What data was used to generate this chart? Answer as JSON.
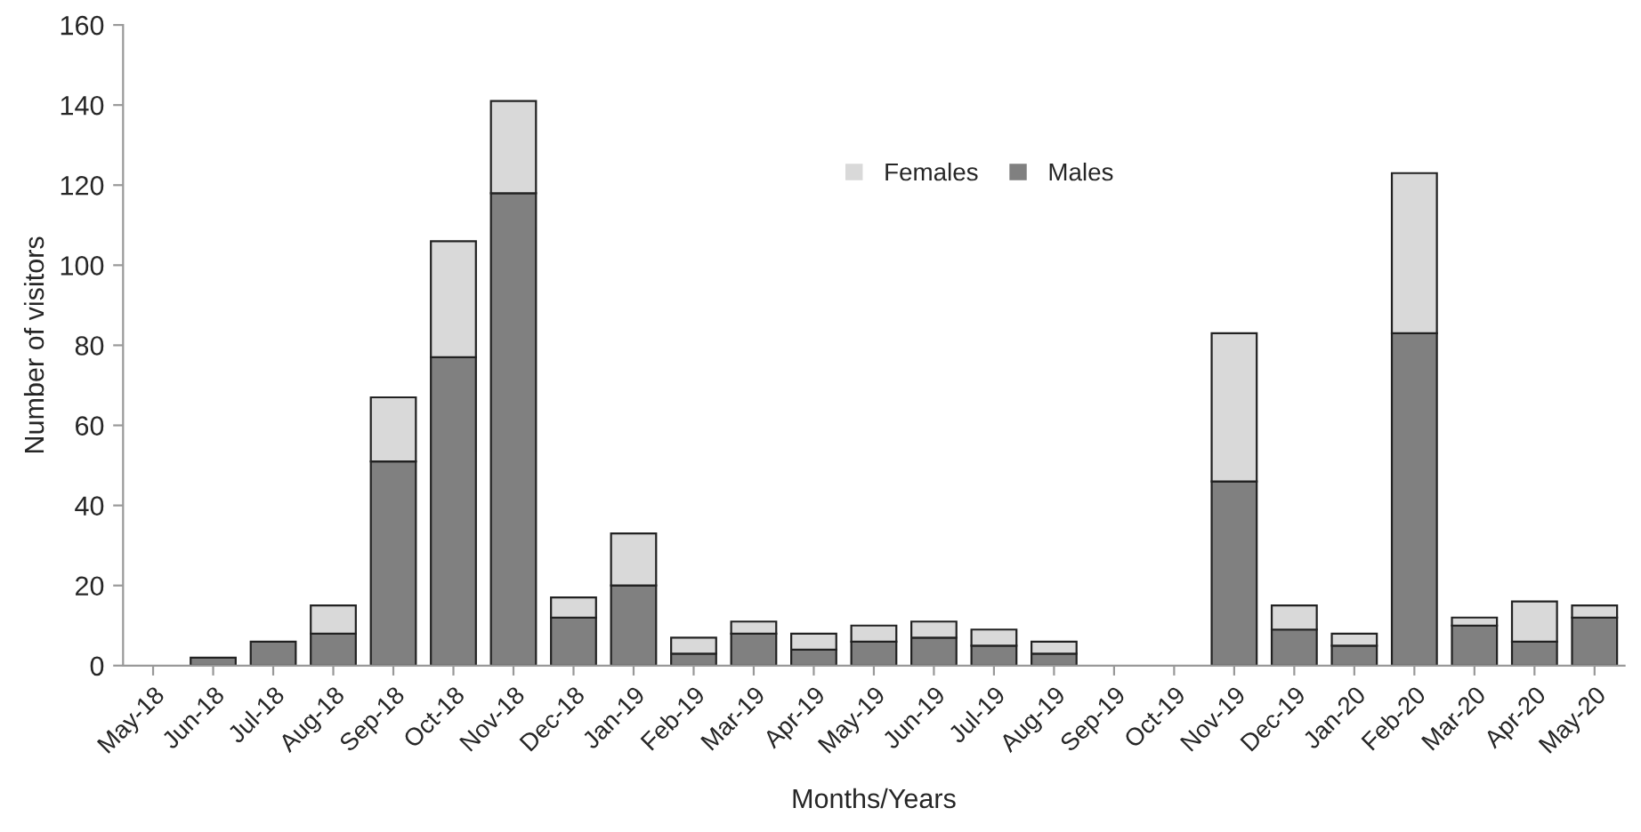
{
  "chart_data": {
    "type": "bar",
    "stacked": true,
    "xlabel": "Months/Years",
    "ylabel": "Number of visitors",
    "categories": [
      "May-18",
      "Jun-18",
      "Jul-18",
      "Aug-18",
      "Sep-18",
      "Oct-18",
      "Nov-18",
      "Dec-18",
      "Jan-19",
      "Feb-19",
      "Mar-19",
      "Apr-19",
      "May-19",
      "Jun-19",
      "Jul-19",
      "Aug-19",
      "Sep-19",
      "Oct-19",
      "Nov-19",
      "Dec-19",
      "Jan-20",
      "Feb-20",
      "Mar-20",
      "Apr-20",
      "May-20"
    ],
    "series": [
      {
        "name": "Males",
        "color": "#808080",
        "values": [
          0,
          2,
          6,
          8,
          51,
          77,
          118,
          12,
          20,
          3,
          8,
          4,
          6,
          7,
          5,
          3,
          0,
          0,
          46,
          9,
          5,
          83,
          10,
          6,
          12
        ]
      },
      {
        "name": "Females",
        "color": "#d9d9d9",
        "values": [
          0,
          0,
          0,
          7,
          16,
          29,
          23,
          5,
          13,
          4,
          3,
          4,
          4,
          4,
          4,
          3,
          0,
          0,
          37,
          6,
          3,
          40,
          2,
          10,
          3
        ]
      }
    ],
    "ylim": [
      0,
      160
    ],
    "yticks": [
      0,
      20,
      40,
      60,
      80,
      100,
      120,
      140,
      160
    ],
    "grid": false,
    "legend": "top"
  }
}
